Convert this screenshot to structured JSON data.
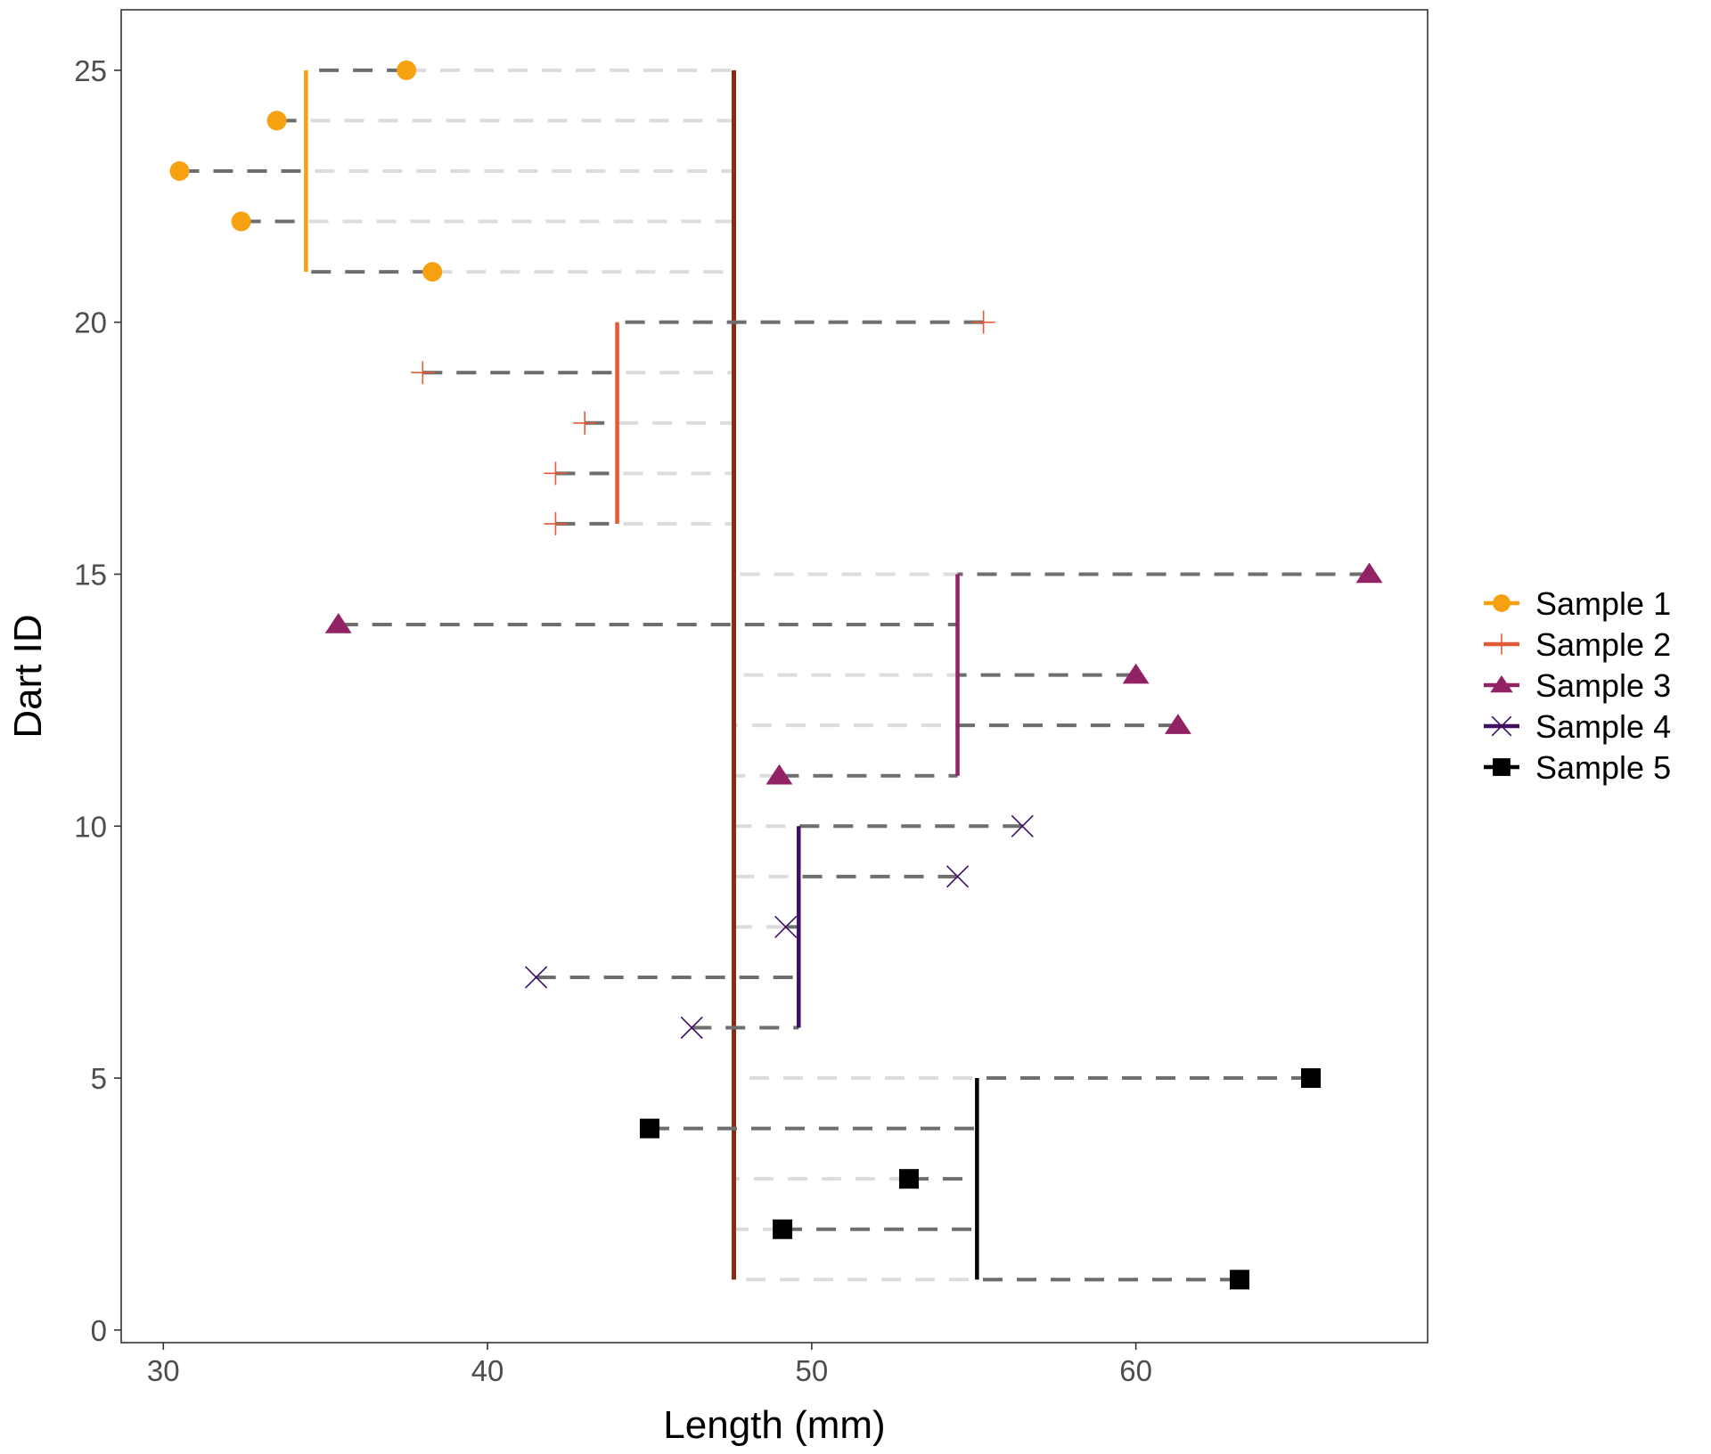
{
  "chart_data": {
    "type": "scatter",
    "title": "",
    "xlabel": "Length (mm)",
    "ylabel": "Dart ID",
    "xlim": [
      28.7,
      69.0
    ],
    "ylim": [
      -0.25,
      26.2
    ],
    "xticks": [
      30,
      40,
      50,
      60
    ],
    "yticks": [
      0,
      5,
      10,
      15,
      20,
      25
    ],
    "grid": false,
    "legend_position": "right",
    "overall_mean": 47.6,
    "overall_mean_color": "#8b2a14",
    "residual_color": "#6e6e6e",
    "overall_residual_color": "#dcdcdc",
    "series": [
      {
        "name": "Sample 1",
        "marker": "circle",
        "color": "#f6a10f",
        "mean": 34.4,
        "points": [
          [
            25,
            37.5
          ],
          [
            24,
            33.5
          ],
          [
            23,
            30.5
          ],
          [
            22,
            32.4
          ],
          [
            21,
            38.3
          ]
        ]
      },
      {
        "name": "Sample 2",
        "marker": "plus",
        "color": "#e45a37",
        "mean": 44.0,
        "points": [
          [
            20,
            55.3
          ],
          [
            19,
            38.0
          ],
          [
            18,
            43.0
          ],
          [
            17,
            42.1
          ],
          [
            16,
            42.1
          ]
        ]
      },
      {
        "name": "Sample 3",
        "marker": "triangle",
        "color": "#912264",
        "mean": 54.5,
        "points": [
          [
            15,
            67.2
          ],
          [
            14,
            35.4
          ],
          [
            13,
            60.0
          ],
          [
            12,
            61.3
          ],
          [
            11,
            49.0
          ]
        ]
      },
      {
        "name": "Sample 4",
        "marker": "x",
        "color": "#3f0f62",
        "mean": 49.6,
        "points": [
          [
            10,
            56.5
          ],
          [
            9,
            54.5
          ],
          [
            8,
            49.2
          ],
          [
            7,
            41.5
          ],
          [
            6,
            46.3
          ]
        ]
      },
      {
        "name": "Sample 5",
        "marker": "square",
        "color": "#000000",
        "mean": 55.1,
        "points": [
          [
            5,
            65.4
          ],
          [
            4,
            45.0
          ],
          [
            3,
            53.0
          ],
          [
            2,
            49.1
          ],
          [
            1,
            63.2
          ]
        ]
      }
    ]
  }
}
